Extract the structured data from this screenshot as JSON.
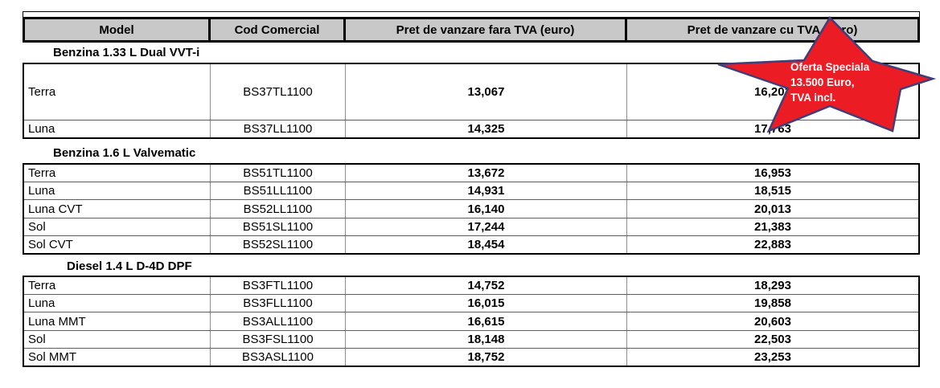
{
  "table": {
    "columns": [
      "Model",
      "Cod Comercial",
      "Pret de vanzare fara TVA (euro)",
      "Pret de vanzare cu TVA (euro)"
    ],
    "sections": [
      {
        "title": "Benzina 1.33 L Dual VVT-i",
        "rows": [
          {
            "model": "Terra",
            "cod": "BS37TL1100",
            "pret_fara": "13,067",
            "pret_cu": "16,203"
          },
          {
            "model": "Luna",
            "cod": "BS37LL1100",
            "pret_fara": "14,325",
            "pret_cu": "17,763"
          }
        ]
      },
      {
        "title": "Benzina 1.6 L Valvematic",
        "rows": [
          {
            "model": "Terra",
            "cod": "BS51TL1100",
            "pret_fara": "13,672",
            "pret_cu": "16,953"
          },
          {
            "model": "Luna",
            "cod": "BS51LL1100",
            "pret_fara": "14,931",
            "pret_cu": "18,515"
          },
          {
            "model": "Luna CVT",
            "cod": "BS52LL1100",
            "pret_fara": "16,140",
            "pret_cu": "20,013"
          },
          {
            "model": "Sol",
            "cod": "BS51SL1100",
            "pret_fara": "17,244",
            "pret_cu": "21,383"
          },
          {
            "model": "Sol CVT",
            "cod": "BS52SL1100",
            "pret_fara": "18,454",
            "pret_cu": "22,883"
          }
        ]
      },
      {
        "title": "Diesel 1.4 L D-4D DPF",
        "rows": [
          {
            "model": "Terra",
            "cod": "BS3FTL1100",
            "pret_fara": "14,752",
            "pret_cu": "18,293"
          },
          {
            "model": "Luna",
            "cod": "BS3FLL1100",
            "pret_fara": "16,015",
            "pret_cu": "19,858"
          },
          {
            "model": "Luna MMT",
            "cod": "BS3ALL1100",
            "pret_fara": "16,615",
            "pret_cu": "20,603"
          },
          {
            "model": "Sol",
            "cod": "BS3FSL1100",
            "pret_fara": "18,148",
            "pret_cu": "22,503"
          },
          {
            "model": "Sol MMT",
            "cod": "BS3ASL1100",
            "pret_fara": "18,752",
            "pret_cu": "23,253"
          }
        ]
      }
    ]
  },
  "badge": {
    "lines": [
      "Oferta Speciala",
      "13.500 Euro,",
      "TVA incl."
    ],
    "fill_color": "#EC1C25",
    "outline_color": "#3F3E7A",
    "text_color": "#FFFFFF"
  },
  "colors": {
    "header_bg": "#C8C8C8",
    "border_black": "#000000",
    "grid_gray": "#8F8F8F"
  }
}
